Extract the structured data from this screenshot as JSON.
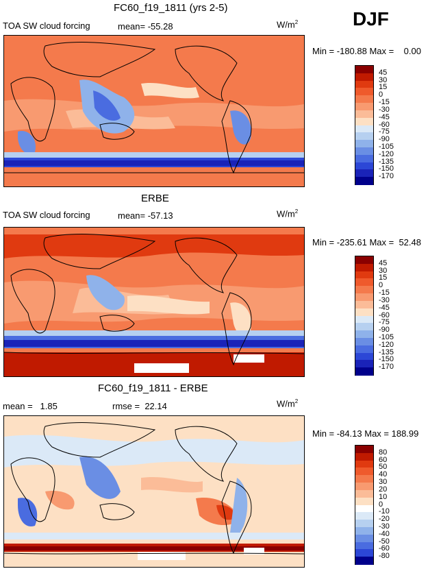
{
  "season": "DJF",
  "panels": [
    {
      "title": "FC60_f19_1811 (yrs 2-5)",
      "left_label": "TOA SW cloud forcing",
      "mean_text": "mean= -55.28",
      "rmse_text": "",
      "units_base": "W/m",
      "units_exp": "2",
      "minmax_text": "Min = -180.88 Max =    0.00",
      "levels": [
        "45",
        "30",
        "15",
        "0",
        "-15",
        "-30",
        "-45",
        "-60",
        "-75",
        "-90",
        "-105",
        "-120",
        "-135",
        "-150",
        "-170"
      ],
      "colors": [
        "#8a0000",
        "#c01a00",
        "#e03a10",
        "#ef5a2c",
        "#f47a4c",
        "#f89a70",
        "#fbbc98",
        "#fde0c4",
        "#dbe9f7",
        "#b6d0f0",
        "#8fb2ea",
        "#6a8ee4",
        "#4a6ce0",
        "#2c47d6",
        "#1a23b8",
        "#00008b"
      ]
    },
    {
      "title": "ERBE",
      "left_label": "TOA SW cloud forcing",
      "mean_text": "mean= -57.13",
      "rmse_text": "",
      "units_base": "W/m",
      "units_exp": "2",
      "minmax_text": "Min = -235.61 Max =  52.48",
      "levels": [
        "45",
        "30",
        "15",
        "0",
        "-15",
        "-30",
        "-45",
        "-60",
        "-75",
        "-90",
        "-105",
        "-120",
        "-135",
        "-150",
        "-170"
      ],
      "colors": [
        "#8a0000",
        "#c01a00",
        "#e03a10",
        "#ef5a2c",
        "#f47a4c",
        "#f89a70",
        "#fbbc98",
        "#fde0c4",
        "#dbe9f7",
        "#b6d0f0",
        "#8fb2ea",
        "#6a8ee4",
        "#4a6ce0",
        "#2c47d6",
        "#1a23b8",
        "#00008b"
      ]
    },
    {
      "title": "FC60_f19_1811 - ERBE",
      "left_label": "",
      "mean_text": "mean =   1.85",
      "rmse_text": "rmse =  22.14",
      "units_base": "W/m",
      "units_exp": "2",
      "minmax_text": "Min = -84.13 Max = 188.99",
      "levels": [
        "80",
        "60",
        "50",
        "40",
        "30",
        "20",
        "10",
        "0",
        "-10",
        "-20",
        "-30",
        "-40",
        "-50",
        "-60",
        "-80"
      ],
      "colors": [
        "#8a0000",
        "#c01a00",
        "#e03a10",
        "#ef5a2c",
        "#f47a4c",
        "#f89a70",
        "#fbbc98",
        "#fde0c4",
        "#ffffff",
        "#dbe9f7",
        "#b6d0f0",
        "#8fb2ea",
        "#6a8ee4",
        "#4a6ce0",
        "#2c47d6",
        "#00008b"
      ]
    }
  ]
}
